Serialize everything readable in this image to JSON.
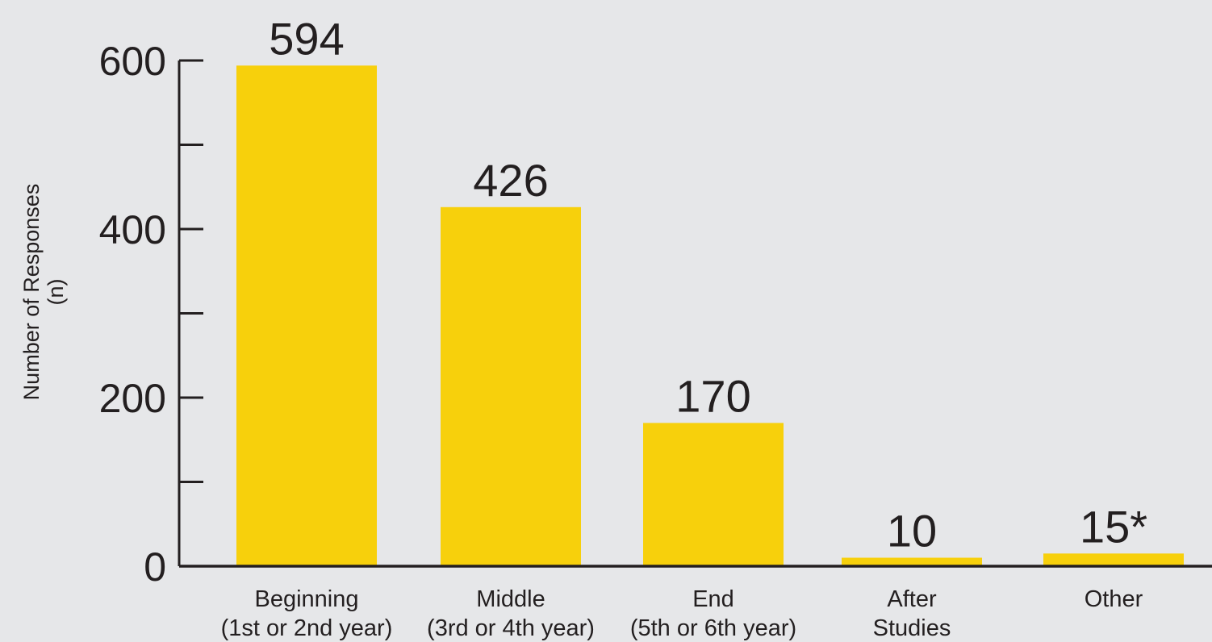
{
  "chart_data": {
    "type": "bar",
    "ylabel": [
      "Number of Responses",
      "(n)"
    ],
    "ylim": [
      0,
      600
    ],
    "major_ticks": [
      0,
      200,
      400,
      600
    ],
    "minor_ticks": [
      100,
      300,
      500
    ],
    "categories": [
      [
        "Beginning",
        "(1st or 2nd year)"
      ],
      [
        "Middle",
        "(3rd or 4th year)"
      ],
      [
        "End",
        "(5th or 6th year)"
      ],
      [
        "After",
        "Studies"
      ],
      [
        "Other"
      ]
    ],
    "values": [
      594,
      426,
      170,
      10,
      15
    ],
    "data_labels": [
      "594",
      "426",
      "170",
      "10",
      "15*"
    ],
    "bar_color": "#f7d00c",
    "axis_color": "#231f20",
    "background": "#e6e7e9",
    "grid": false,
    "legend": false
  }
}
